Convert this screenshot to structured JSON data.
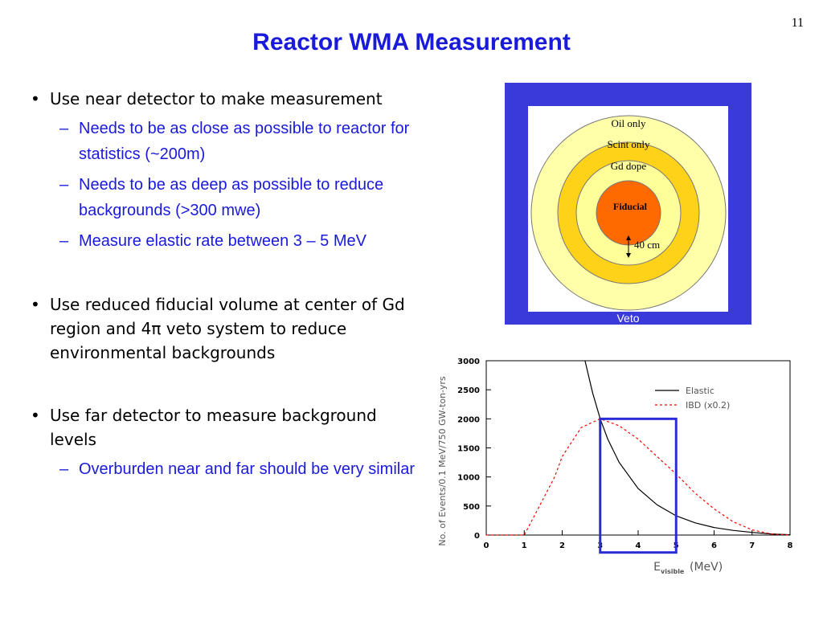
{
  "slide": {
    "number": "11",
    "title": "Reactor WMA Measurement"
  },
  "bullets": {
    "b1": {
      "text": "Use near detector to make measurement"
    },
    "b1_sub": [
      "Needs to be as close as possible to reactor for statistics (~200m)",
      "Needs to be as deep as possible to reduce backgrounds (>300 mwe)",
      "Measure elastic rate between 3 – 5 MeV"
    ],
    "b2": {
      "text": "Use reduced fiducial volume at center of Gd region and 4π veto system to reduce environmental backgrounds"
    },
    "b3": {
      "text": "Use far detector to measure background levels"
    },
    "b3_sub": [
      "Overburden near and far should be very similar"
    ]
  },
  "detector": {
    "veto_label": "Veto",
    "oil_label": "Oil only",
    "scint_label": "Scint only",
    "gd_label": "Gd dope",
    "fiducial_label": "Fiducial",
    "dim_label": "40 cm",
    "colors": {
      "veto": "#3a3adb",
      "oil": "#ffffaa",
      "scint": "#ffd21a",
      "gd": "#ffff99",
      "fiducial": "#ff6a00"
    }
  },
  "chart_data": {
    "type": "line",
    "xlabel": "E",
    "xlabel_sub": "visible",
    "xlabel_unit": "(MeV)",
    "ylabel": "No. of Events/0.1 MeV/750 GW-ton-yrs",
    "xlim": [
      0,
      8
    ],
    "ylim": [
      0,
      3000
    ],
    "xticks": [
      0,
      1,
      2,
      3,
      4,
      5,
      6,
      7,
      8
    ],
    "yticks": [
      0,
      500,
      1000,
      1500,
      2000,
      2500,
      3000
    ],
    "legend_position": "top-right",
    "series": [
      {
        "name": "Elastic",
        "style": "solid",
        "color": "#000000",
        "x": [
          2.6,
          2.8,
          3.0,
          3.2,
          3.5,
          4.0,
          4.5,
          5.0,
          5.5,
          6.0,
          6.5,
          7.0,
          7.5,
          8.0
        ],
        "y": [
          3000,
          2450,
          2000,
          1650,
          1250,
          800,
          520,
          330,
          210,
          130,
          80,
          45,
          20,
          5
        ]
      },
      {
        "name": "IBD (x0.2)",
        "style": "dashed",
        "color": "#ff0000",
        "x": [
          0,
          1.0,
          1.8,
          2.0,
          2.5,
          3.0,
          3.5,
          4.0,
          4.5,
          5.0,
          5.5,
          6.0,
          6.5,
          7.0,
          7.5,
          8.0
        ],
        "y": [
          0,
          0,
          1000,
          1350,
          1850,
          2000,
          1880,
          1650,
          1350,
          1050,
          720,
          450,
          230,
          90,
          20,
          0
        ]
      }
    ],
    "highlight_box": {
      "x_range": [
        3,
        5
      ],
      "y_range": [
        -300,
        2000
      ],
      "color": "#2a2ad6"
    }
  }
}
